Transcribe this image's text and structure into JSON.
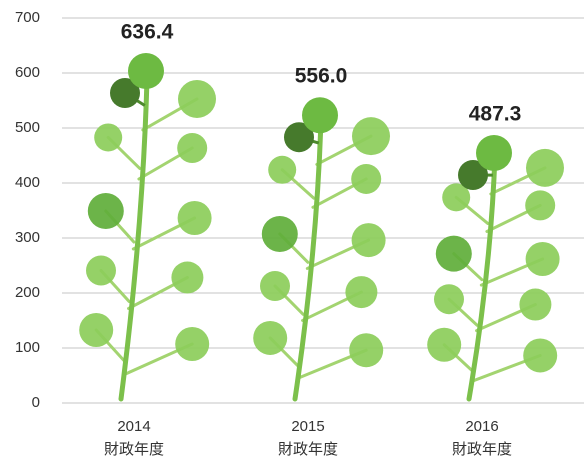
{
  "chart_data": {
    "type": "bar",
    "categories": [
      [
        "2014",
        "財政年度"
      ],
      [
        "2015",
        "財政年度"
      ],
      [
        "2016",
        "財政年度"
      ]
    ],
    "values": [
      636.4,
      556.0,
      487.3
    ],
    "value_labels": [
      "636.4",
      "556.0",
      "487.3"
    ],
    "color": "#7cc04b",
    "ylim": [
      0,
      700
    ],
    "yticks": [
      0,
      100,
      200,
      300,
      400,
      500,
      600,
      700
    ],
    "grid": true
  }
}
